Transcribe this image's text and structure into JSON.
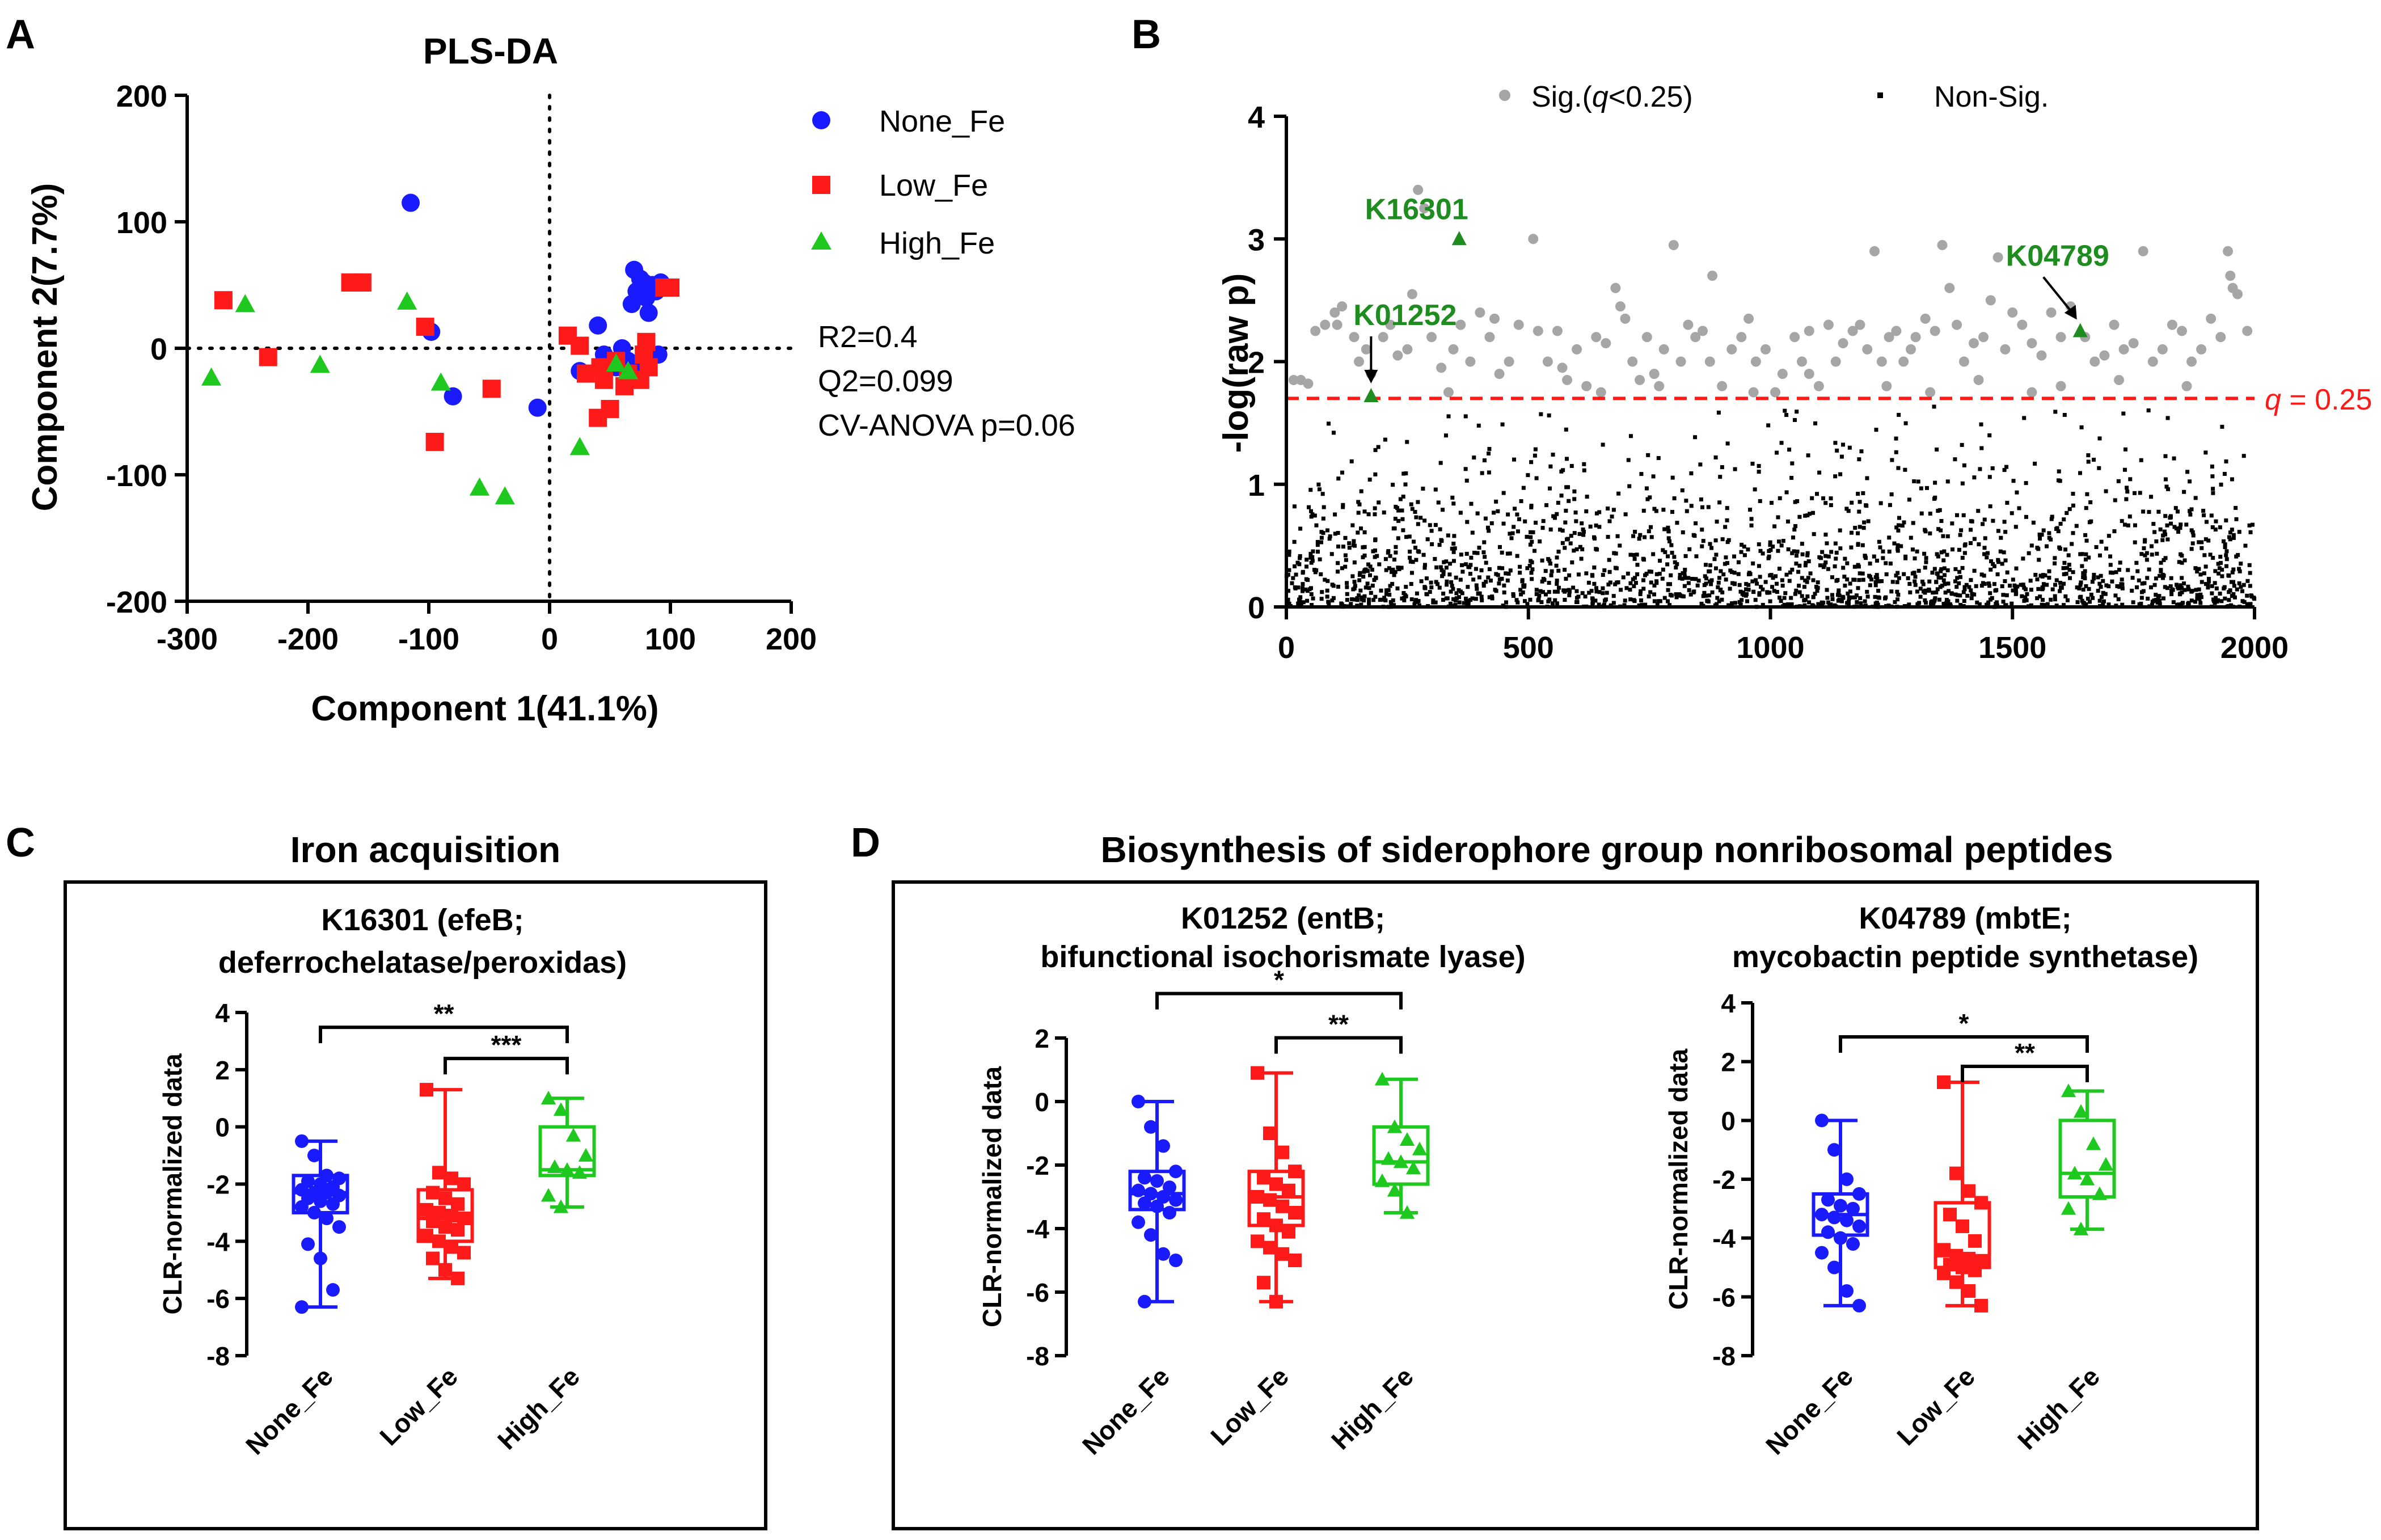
{
  "colors": {
    "none": "#1a1aff",
    "low": "#ff1a1a",
    "high": "#1ec81e",
    "sig": "#a6a6a6",
    "nonsig": "#000000",
    "threshold": "#ff1a1a",
    "label_green": "#1e8c1e"
  },
  "panel_labels": {
    "a": "A",
    "b": "B",
    "c": "C",
    "d": "D"
  },
  "panel_a": {
    "title": "PLS-DA",
    "xlabel": "Component 1(41.1%)",
    "ylabel": "Component 2(7.7%)",
    "legend": [
      "None_Fe",
      "Low_Fe",
      "High_Fe"
    ],
    "stats": [
      "R2=0.4",
      "Q2=0.099",
      "CV-ANOVA p=0.06"
    ]
  },
  "panel_b": {
    "ylabel": "-log(raw p)",
    "legend": {
      "sig_prefix": "Sig.(",
      "sig_q": "q",
      "sig_suffix": "<0.25)",
      "nonsig": "Non-Sig."
    },
    "threshold_q": "q",
    "threshold_rest": " = 0.25",
    "highlights": [
      "K16301",
      "K01252",
      "K04789"
    ]
  },
  "panel_c": {
    "title": "Iron acquisition",
    "sub_title": [
      "K16301 (efeB;",
      "deferrochelatase/peroxidas)"
    ]
  },
  "panel_d": {
    "title": "Biosynthesis of siderophore group nonribosomal peptides",
    "left_title": [
      "K01252 (entB;",
      "bifunctional isochorismate lyase)"
    ],
    "right_title": [
      "K04789 (mbtE;",
      "mycobactin peptide synthetase)"
    ]
  },
  "chart_data": [
    {
      "type": "scatter",
      "id": "pls-da",
      "title": "PLS-DA",
      "xlabel": "Component 1(41.1%)",
      "ylabel": "Component 2(7.7%)",
      "xlim": [
        -300,
        200
      ],
      "ylim": [
        -200,
        200
      ],
      "xticks": [
        -300,
        -200,
        -100,
        0,
        100,
        200
      ],
      "yticks": [
        -200,
        -100,
        0,
        100,
        200
      ],
      "series": [
        {
          "name": "None_Fe",
          "marker": "circle",
          "points": [
            [
              -115,
              115
            ],
            [
              -98,
              13
            ],
            [
              -80,
              -38
            ],
            [
              -10,
              -47
            ],
            [
              40,
              18
            ],
            [
              25,
              -18
            ],
            [
              45,
              -5
            ],
            [
              55,
              -15
            ],
            [
              60,
              -12
            ],
            [
              65,
              -10
            ],
            [
              70,
              -15
            ],
            [
              75,
              -20
            ],
            [
              80,
              -12
            ],
            [
              90,
              -5
            ],
            [
              68,
              35
            ],
            [
              72,
              45
            ],
            [
              75,
              55
            ],
            [
              80,
              40
            ],
            [
              82,
              28
            ],
            [
              85,
              50
            ],
            [
              88,
              45
            ],
            [
              70,
              62
            ],
            [
              78,
              52
            ],
            [
              92,
              52
            ],
            [
              50,
              -10
            ],
            [
              60,
              0
            ]
          ]
        },
        {
          "name": "Low_Fe",
          "marker": "square",
          "points": [
            [
              -270,
              38
            ],
            [
              -233,
              -7
            ],
            [
              -165,
              52
            ],
            [
              -155,
              52
            ],
            [
              -103,
              17
            ],
            [
              -95,
              -74
            ],
            [
              -48,
              -32
            ],
            [
              15,
              10
            ],
            [
              25,
              2
            ],
            [
              30,
              -20
            ],
            [
              40,
              -55
            ],
            [
              45,
              -25
            ],
            [
              50,
              -48
            ],
            [
              55,
              -10
            ],
            [
              65,
              -20
            ],
            [
              75,
              -25
            ],
            [
              78,
              -5
            ],
            [
              80,
              5
            ],
            [
              82,
              -15
            ],
            [
              95,
              48
            ],
            [
              100,
              48
            ],
            [
              62,
              -30
            ],
            [
              42,
              -15
            ]
          ]
        },
        {
          "name": "High_Fe",
          "marker": "triangle",
          "points": [
            [
              -280,
              -23
            ],
            [
              -252,
              35
            ],
            [
              -190,
              -13
            ],
            [
              -118,
              37
            ],
            [
              -90,
              -27
            ],
            [
              -58,
              -110
            ],
            [
              -37,
              -117
            ],
            [
              25,
              -78
            ],
            [
              55,
              -12
            ],
            [
              65,
              -18
            ]
          ]
        }
      ],
      "legend": [
        "None_Fe",
        "Low_Fe",
        "High_Fe"
      ],
      "annotations": [
        "R2=0.4",
        "Q2=0.099",
        "CV-ANOVA p=0.06"
      ]
    },
    {
      "type": "scatter",
      "id": "manhattan",
      "ylabel": "-log(raw p)",
      "xlim": [
        0,
        2000
      ],
      "ylim": [
        0,
        4
      ],
      "xticks": [
        0,
        500,
        1000,
        1500,
        2000
      ],
      "yticks": [
        0,
        1,
        2,
        3,
        4
      ],
      "threshold_y": 1.7,
      "threshold_label": "q = 0.25",
      "legend": [
        "Sig.(q<0.25)",
        "Non-Sig."
      ],
      "nonsig": {
        "count": 2000,
        "note": "dense scatter of non-significant features, -log p between 0 and 1.7"
      },
      "sig_points": [
        [
          15,
          1.85
        ],
        [
          30,
          1.85
        ],
        [
          45,
          1.82
        ],
        [
          60,
          2.25
        ],
        [
          80,
          2.3
        ],
        [
          100,
          2.4
        ],
        [
          105,
          2.3
        ],
        [
          115,
          2.45
        ],
        [
          140,
          2.2
        ],
        [
          165,
          2.1
        ],
        [
          175,
          1.9
        ],
        [
          200,
          2.2
        ],
        [
          215,
          2.3
        ],
        [
          230,
          2.05
        ],
        [
          260,
          2.55
        ],
        [
          272,
          3.4
        ],
        [
          285,
          3.25
        ],
        [
          300,
          2.2
        ],
        [
          320,
          1.95
        ],
        [
          345,
          2.1
        ],
        [
          360,
          2.3
        ],
        [
          380,
          2.0
        ],
        [
          400,
          2.4
        ],
        [
          420,
          2.2
        ],
        [
          440,
          1.9
        ],
        [
          460,
          2.0
        ],
        [
          480,
          2.3
        ],
        [
          510,
          3.0
        ],
        [
          520,
          2.25
        ],
        [
          540,
          2.0
        ],
        [
          560,
          2.25
        ],
        [
          580,
          1.85
        ],
        [
          600,
          2.1
        ],
        [
          620,
          1.8
        ],
        [
          640,
          2.2
        ],
        [
          660,
          2.15
        ],
        [
          680,
          2.6
        ],
        [
          690,
          2.45
        ],
        [
          700,
          2.35
        ],
        [
          715,
          2.0
        ],
        [
          730,
          1.85
        ],
        [
          745,
          2.2
        ],
        [
          760,
          1.9
        ],
        [
          780,
          2.1
        ],
        [
          800,
          2.95
        ],
        [
          815,
          2.0
        ],
        [
          830,
          2.3
        ],
        [
          845,
          2.2
        ],
        [
          860,
          2.25
        ],
        [
          875,
          2.0
        ],
        [
          880,
          2.7
        ],
        [
          900,
          1.8
        ],
        [
          920,
          2.1
        ],
        [
          940,
          2.2
        ],
        [
          955,
          2.35
        ],
        [
          970,
          2.0
        ],
        [
          990,
          2.1
        ],
        [
          1010,
          1.75
        ],
        [
          1025,
          1.9
        ],
        [
          1050,
          2.2
        ],
        [
          1065,
          2.0
        ],
        [
          1080,
          1.9
        ],
        [
          1100,
          1.8
        ],
        [
          1120,
          2.3
        ],
        [
          1135,
          2.0
        ],
        [
          1150,
          2.15
        ],
        [
          1170,
          2.25
        ],
        [
          1185,
          2.3
        ],
        [
          1200,
          2.1
        ],
        [
          1215,
          2.9
        ],
        [
          1230,
          2.0
        ],
        [
          1245,
          2.2
        ],
        [
          1260,
          2.25
        ],
        [
          1275,
          2.0
        ],
        [
          1290,
          2.1
        ],
        [
          1300,
          2.2
        ],
        [
          1320,
          2.35
        ],
        [
          1340,
          2.25
        ],
        [
          1355,
          2.95
        ],
        [
          1370,
          2.6
        ],
        [
          1385,
          2.3
        ],
        [
          1400,
          2.0
        ],
        [
          1420,
          2.15
        ],
        [
          1440,
          2.2
        ],
        [
          1455,
          2.5
        ],
        [
          1470,
          2.85
        ],
        [
          1485,
          2.1
        ],
        [
          1500,
          2.4
        ],
        [
          1520,
          2.3
        ],
        [
          1540,
          2.15
        ],
        [
          1560,
          2.05
        ],
        [
          1580,
          2.4
        ],
        [
          1600,
          2.2
        ],
        [
          1620,
          2.45
        ],
        [
          1650,
          2.2
        ],
        [
          1670,
          2.0
        ],
        [
          1690,
          2.05
        ],
        [
          1710,
          2.3
        ],
        [
          1730,
          2.1
        ],
        [
          1750,
          2.15
        ],
        [
          1770,
          2.9
        ],
        [
          1790,
          2.0
        ],
        [
          1810,
          2.1
        ],
        [
          1830,
          2.3
        ],
        [
          1850,
          2.25
        ],
        [
          1870,
          2.0
        ],
        [
          1890,
          2.1
        ],
        [
          1910,
          2.35
        ],
        [
          1930,
          2.2
        ],
        [
          1945,
          2.9
        ],
        [
          1950,
          2.7
        ],
        [
          1955,
          2.6
        ],
        [
          1965,
          2.55
        ],
        [
          1985,
          2.25
        ],
        [
          150,
          2.0
        ],
        [
          250,
          2.1
        ],
        [
          335,
          1.75
        ],
        [
          430,
          2.35
        ],
        [
          570,
          1.95
        ],
        [
          650,
          1.75
        ],
        [
          770,
          1.8
        ],
        [
          965,
          1.75
        ],
        [
          1080,
          2.25
        ],
        [
          1240,
          1.8
        ],
        [
          1330,
          1.75
        ],
        [
          1430,
          1.85
        ],
        [
          1540,
          1.75
        ],
        [
          1600,
          1.8
        ],
        [
          1720,
          1.85
        ],
        [
          1860,
          1.8
        ]
      ],
      "highlight_points": [
        {
          "label": "K16301",
          "x": 357,
          "y": 3.0
        },
        {
          "label": "K01252",
          "x": 175,
          "y": 1.72
        },
        {
          "label": "K04789",
          "x": 1640,
          "y": 2.25
        }
      ]
    },
    {
      "type": "box",
      "id": "K16301",
      "title": "K16301 (efeB; deferrochelatase/peroxidas)",
      "ylabel": "CLR-normalized data",
      "categories": [
        "None_Fe",
        "Low_Fe",
        "High_Fe"
      ],
      "ylim": [
        -8,
        4
      ],
      "yticks": [
        -8,
        -6,
        -4,
        -2,
        0,
        2,
        4
      ],
      "boxes": [
        {
          "q1": -3.0,
          "median": -2.3,
          "q3": -1.7,
          "min": -6.3,
          "max": -0.5,
          "points": [
            -0.5,
            -1.0,
            -1.7,
            -1.8,
            -1.9,
            -2.0,
            -2.1,
            -2.2,
            -2.3,
            -2.3,
            -2.4,
            -2.5,
            -2.6,
            -2.7,
            -2.8,
            -3.0,
            -3.2,
            -3.5,
            -4.1,
            -4.6,
            -5.7,
            -6.3
          ]
        },
        {
          "q1": -4.0,
          "median": -3.2,
          "q3": -2.2,
          "min": -5.3,
          "max": 1.3,
          "points": [
            1.3,
            -1.6,
            -1.8,
            -2.0,
            -2.3,
            -2.5,
            -2.7,
            -2.9,
            -3.0,
            -3.1,
            -3.2,
            -3.3,
            -3.5,
            -3.6,
            -3.8,
            -4.0,
            -4.2,
            -4.4,
            -4.6,
            -5.0,
            -5.3
          ]
        },
        {
          "q1": -1.7,
          "median": -1.5,
          "q3": 0.0,
          "min": -2.8,
          "max": 1.0,
          "points": [
            1.0,
            0.6,
            -0.3,
            -1.0,
            -1.4,
            -1.5,
            -1.6,
            -2.4,
            -2.8
          ]
        }
      ],
      "significance": [
        {
          "from": "None_Fe",
          "to": "High_Fe",
          "label": "**"
        },
        {
          "from": "Low_Fe",
          "to": "High_Fe",
          "label": "***"
        }
      ]
    },
    {
      "type": "box",
      "id": "K01252",
      "title": "K01252 (entB; bifunctional isochorismate lyase)",
      "ylabel": "CLR-normalized data",
      "categories": [
        "None_Fe",
        "Low_Fe",
        "High_Fe"
      ],
      "ylim": [
        -8,
        2
      ],
      "yticks": [
        -8,
        -6,
        -4,
        -2,
        0,
        2
      ],
      "boxes": [
        {
          "q1": -3.4,
          "median": -2.9,
          "q3": -2.2,
          "min": -6.3,
          "max": 0.0,
          "points": [
            0.0,
            -0.8,
            -1.4,
            -2.2,
            -2.4,
            -2.5,
            -2.7,
            -2.8,
            -2.9,
            -3.0,
            -3.1,
            -3.2,
            -3.3,
            -3.5,
            -3.8,
            -4.2,
            -4.8,
            -5.0,
            -6.3
          ]
        },
        {
          "q1": -3.9,
          "median": -3.0,
          "q3": -2.2,
          "min": -6.3,
          "max": 0.9,
          "points": [
            0.9,
            -1.0,
            -1.6,
            -2.2,
            -2.4,
            -2.6,
            -2.8,
            -3.0,
            -3.1,
            -3.3,
            -3.5,
            -3.7,
            -3.9,
            -4.1,
            -4.4,
            -4.6,
            -4.8,
            -5.0,
            -5.7,
            -6.3
          ]
        },
        {
          "q1": -2.6,
          "median": -1.9,
          "q3": -0.8,
          "min": -3.5,
          "max": 0.7,
          "points": [
            0.7,
            -0.8,
            -1.2,
            -1.5,
            -1.8,
            -1.9,
            -2.1,
            -2.5,
            -2.8,
            -3.5
          ]
        }
      ],
      "significance": [
        {
          "from": "None_Fe",
          "to": "High_Fe",
          "label": "*"
        },
        {
          "from": "Low_Fe",
          "to": "High_Fe",
          "label": "**"
        }
      ]
    },
    {
      "type": "box",
      "id": "K04789",
      "title": "K04789 (mbtE; mycobactin peptide synthetase)",
      "ylabel": "CLR-normalized data",
      "categories": [
        "None_Fe",
        "Low_Fe",
        "High_Fe"
      ],
      "ylim": [
        -8,
        4
      ],
      "yticks": [
        -8,
        -6,
        -4,
        -2,
        0,
        2,
        4
      ],
      "boxes": [
        {
          "q1": -3.9,
          "median": -3.2,
          "q3": -2.5,
          "min": -6.3,
          "max": 0.0,
          "points": [
            0.0,
            -1.0,
            -2.0,
            -2.5,
            -2.7,
            -2.9,
            -3.0,
            -3.2,
            -3.3,
            -3.4,
            -3.6,
            -3.8,
            -4.0,
            -4.2,
            -4.5,
            -5.0,
            -5.8,
            -6.3
          ]
        },
        {
          "q1": -5.0,
          "median": -4.6,
          "q3": -2.8,
          "min": -6.3,
          "max": 1.3,
          "points": [
            1.3,
            -1.8,
            -2.4,
            -2.8,
            -3.2,
            -3.6,
            -4.1,
            -4.4,
            -4.6,
            -4.7,
            -4.8,
            -4.9,
            -5.0,
            -5.1,
            -5.2,
            -5.5,
            -5.8,
            -6.3
          ]
        },
        {
          "q1": -2.6,
          "median": -1.8,
          "q3": 0.0,
          "min": -3.7,
          "max": 1.0,
          "points": [
            1.0,
            0.3,
            -0.8,
            -1.5,
            -1.8,
            -2.0,
            -2.5,
            -3.0,
            -3.7
          ]
        }
      ],
      "significance": [
        {
          "from": "None_Fe",
          "to": "High_Fe",
          "label": "*"
        },
        {
          "from": "Low_Fe",
          "to": "High_Fe",
          "label": "**"
        }
      ]
    }
  ]
}
